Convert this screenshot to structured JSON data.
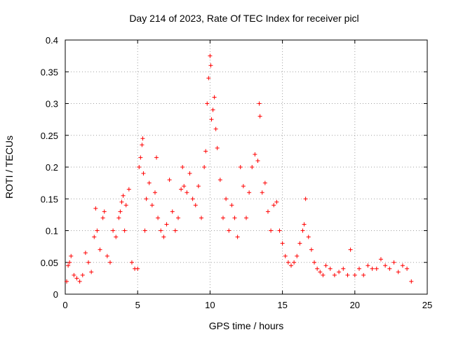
{
  "chart_data": {
    "type": "scatter",
    "title": "Day 214 of 2023, Rate Of TEC Index for receiver picl",
    "xlabel": "GPS time / hours",
    "ylabel": "ROTI / TECUs",
    "xlim": [
      0,
      25
    ],
    "ylim": [
      0,
      0.4
    ],
    "xticks": [
      0,
      5,
      10,
      15,
      20,
      25
    ],
    "xtick_labels": [
      "0",
      "5",
      "10",
      "15",
      "20",
      "25"
    ],
    "yticks": [
      0,
      0.05,
      0.1,
      0.15,
      0.2,
      0.25,
      0.3,
      0.35,
      0.4
    ],
    "ytick_labels": [
      "0",
      "0.05",
      "0.1",
      "0.15",
      "0.2",
      "0.25",
      "0.3",
      "0.35",
      "0.4"
    ],
    "grid": true,
    "marker": "plus",
    "series": [
      {
        "color": "#ff0000",
        "points": [
          [
            0.1,
            0.02
          ],
          [
            0.2,
            0.045
          ],
          [
            0.3,
            0.05
          ],
          [
            0.4,
            0.06
          ],
          [
            0.6,
            0.03
          ],
          [
            0.8,
            0.025
          ],
          [
            1.0,
            0.02
          ],
          [
            1.2,
            0.03
          ],
          [
            1.4,
            0.065
          ],
          [
            1.6,
            0.05
          ],
          [
            1.8,
            0.035
          ],
          [
            2.0,
            0.09
          ],
          [
            2.1,
            0.135
          ],
          [
            2.2,
            0.1
          ],
          [
            2.4,
            0.07
          ],
          [
            2.6,
            0.12
          ],
          [
            2.7,
            0.13
          ],
          [
            2.9,
            0.06
          ],
          [
            3.1,
            0.05
          ],
          [
            3.3,
            0.1
          ],
          [
            3.5,
            0.09
          ],
          [
            3.7,
            0.12
          ],
          [
            3.8,
            0.13
          ],
          [
            3.9,
            0.145
          ],
          [
            4.0,
            0.155
          ],
          [
            4.1,
            0.1
          ],
          [
            4.2,
            0.14
          ],
          [
            4.4,
            0.165
          ],
          [
            4.6,
            0.05
          ],
          [
            4.8,
            0.04
          ],
          [
            5.0,
            0.04
          ],
          [
            5.1,
            0.2
          ],
          [
            5.2,
            0.215
          ],
          [
            5.3,
            0.235
          ],
          [
            5.35,
            0.245
          ],
          [
            5.4,
            0.19
          ],
          [
            5.5,
            0.1
          ],
          [
            5.6,
            0.15
          ],
          [
            5.8,
            0.175
          ],
          [
            6.0,
            0.14
          ],
          [
            6.2,
            0.16
          ],
          [
            6.3,
            0.215
          ],
          [
            6.4,
            0.12
          ],
          [
            6.6,
            0.1
          ],
          [
            6.8,
            0.09
          ],
          [
            7.0,
            0.11
          ],
          [
            7.2,
            0.18
          ],
          [
            7.4,
            0.13
          ],
          [
            7.6,
            0.1
          ],
          [
            7.8,
            0.12
          ],
          [
            8.0,
            0.165
          ],
          [
            8.1,
            0.2
          ],
          [
            8.2,
            0.17
          ],
          [
            8.4,
            0.16
          ],
          [
            8.6,
            0.19
          ],
          [
            8.8,
            0.15
          ],
          [
            9.0,
            0.14
          ],
          [
            9.2,
            0.17
          ],
          [
            9.4,
            0.12
          ],
          [
            9.6,
            0.2
          ],
          [
            9.7,
            0.225
          ],
          [
            9.8,
            0.3
          ],
          [
            9.9,
            0.34
          ],
          [
            10.0,
            0.375
          ],
          [
            10.05,
            0.36
          ],
          [
            10.1,
            0.275
          ],
          [
            10.2,
            0.29
          ],
          [
            10.3,
            0.31
          ],
          [
            10.4,
            0.26
          ],
          [
            10.5,
            0.23
          ],
          [
            10.7,
            0.18
          ],
          [
            10.9,
            0.12
          ],
          [
            11.1,
            0.15
          ],
          [
            11.3,
            0.1
          ],
          [
            11.5,
            0.14
          ],
          [
            11.7,
            0.12
          ],
          [
            11.9,
            0.09
          ],
          [
            12.1,
            0.2
          ],
          [
            12.3,
            0.17
          ],
          [
            12.5,
            0.12
          ],
          [
            12.7,
            0.16
          ],
          [
            12.9,
            0.2
          ],
          [
            13.1,
            0.22
          ],
          [
            13.3,
            0.21
          ],
          [
            13.4,
            0.3
          ],
          [
            13.45,
            0.28
          ],
          [
            13.6,
            0.16
          ],
          [
            13.8,
            0.175
          ],
          [
            14.0,
            0.13
          ],
          [
            14.2,
            0.1
          ],
          [
            14.4,
            0.14
          ],
          [
            14.6,
            0.145
          ],
          [
            14.8,
            0.1
          ],
          [
            15.0,
            0.08
          ],
          [
            15.2,
            0.06
          ],
          [
            15.4,
            0.05
          ],
          [
            15.6,
            0.045
          ],
          [
            15.8,
            0.05
          ],
          [
            16.0,
            0.06
          ],
          [
            16.2,
            0.08
          ],
          [
            16.4,
            0.1
          ],
          [
            16.5,
            0.11
          ],
          [
            16.6,
            0.15
          ],
          [
            16.8,
            0.09
          ],
          [
            17.0,
            0.07
          ],
          [
            17.2,
            0.05
          ],
          [
            17.4,
            0.04
          ],
          [
            17.6,
            0.035
          ],
          [
            17.8,
            0.03
          ],
          [
            18.0,
            0.045
          ],
          [
            18.3,
            0.04
          ],
          [
            18.6,
            0.03
          ],
          [
            18.9,
            0.035
          ],
          [
            19.2,
            0.04
          ],
          [
            19.5,
            0.03
          ],
          [
            19.7,
            0.07
          ],
          [
            20.0,
            0.03
          ],
          [
            20.3,
            0.04
          ],
          [
            20.6,
            0.03
          ],
          [
            20.9,
            0.045
          ],
          [
            21.2,
            0.04
          ],
          [
            21.5,
            0.04
          ],
          [
            21.8,
            0.055
          ],
          [
            22.1,
            0.045
          ],
          [
            22.4,
            0.04
          ],
          [
            22.7,
            0.05
          ],
          [
            23.0,
            0.035
          ],
          [
            23.3,
            0.045
          ],
          [
            23.6,
            0.04
          ],
          [
            23.9,
            0.02
          ]
        ]
      }
    ]
  }
}
